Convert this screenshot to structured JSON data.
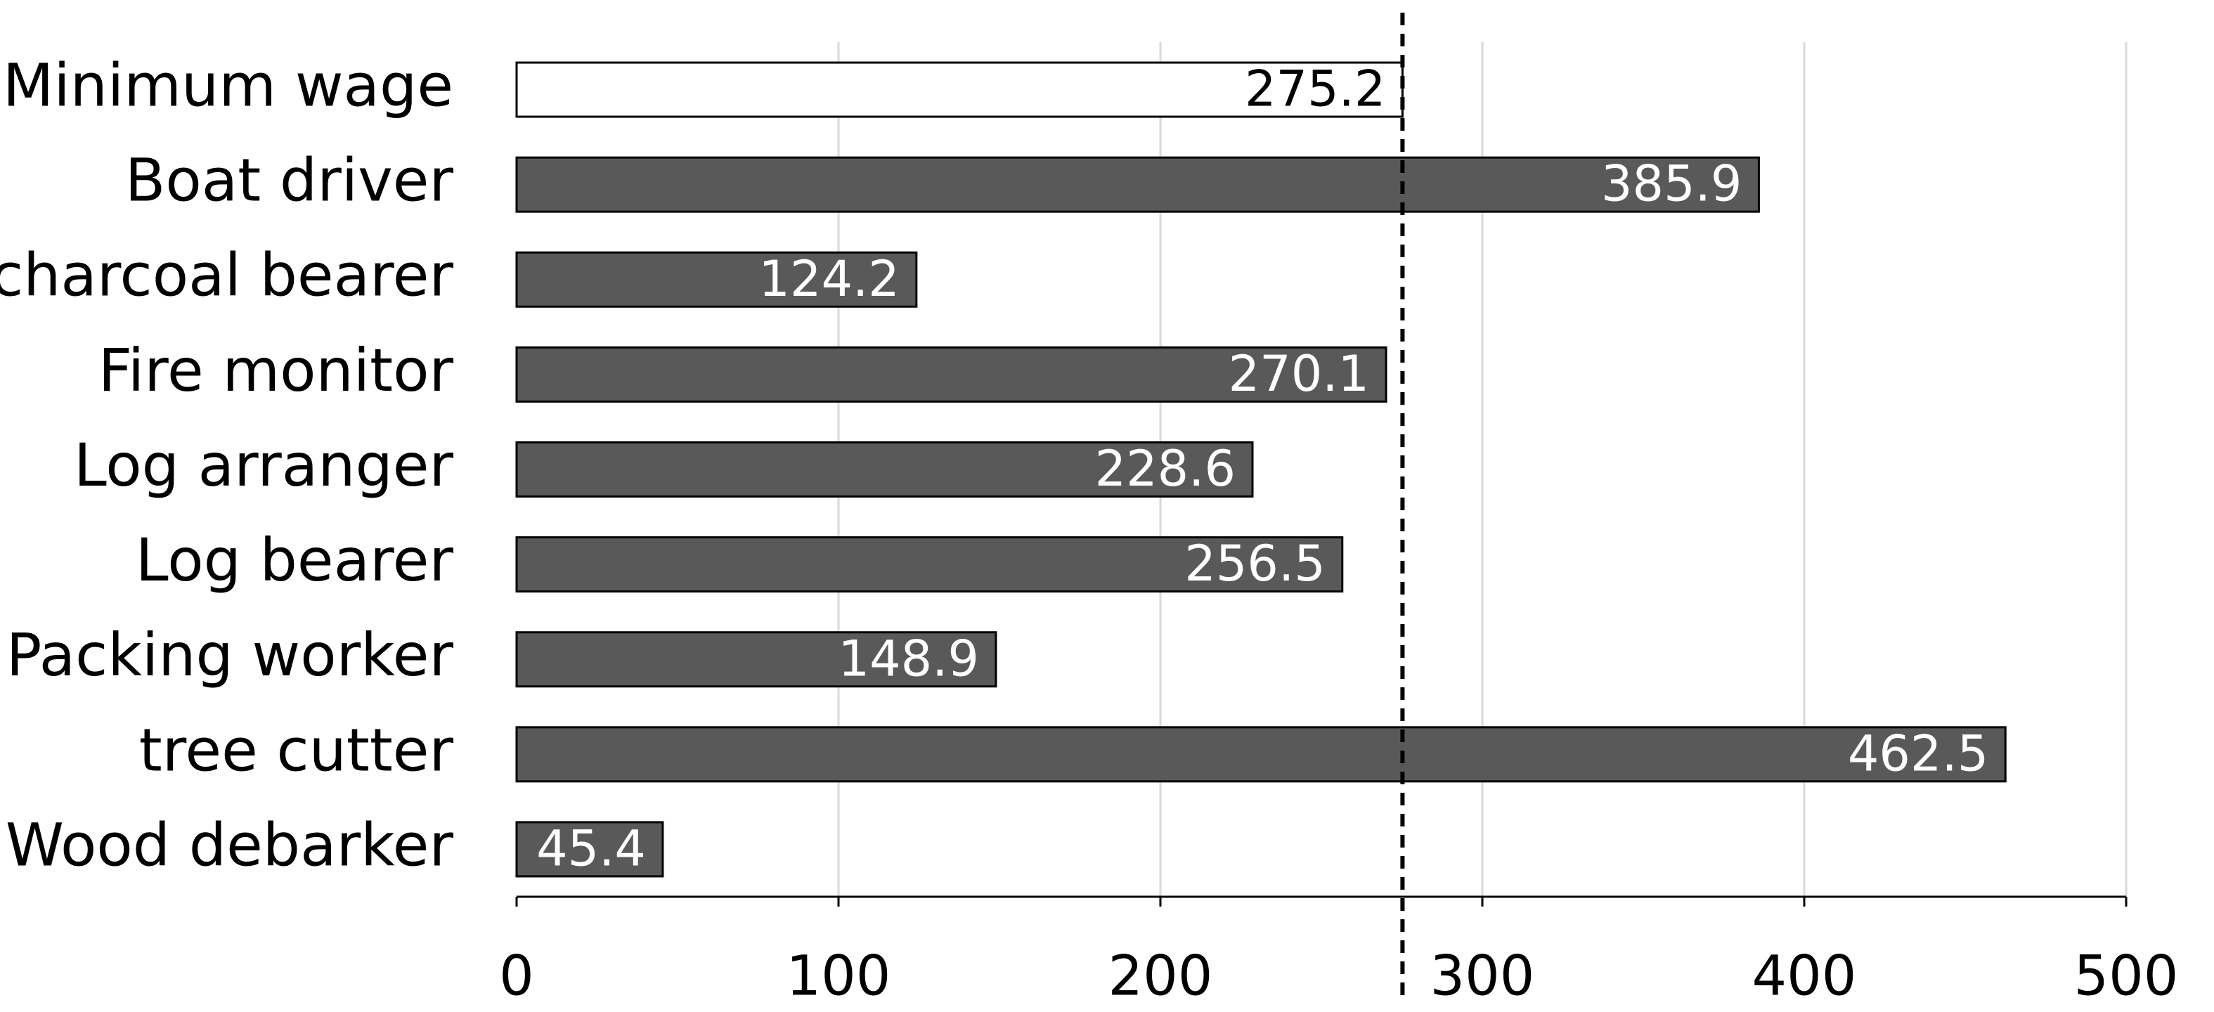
{
  "chart_data": {
    "type": "barh",
    "categories": [
      "Minimum wage",
      "Boat driver",
      "charcoal bearer",
      "Fire monitor",
      "Log arranger",
      "Log bearer",
      "Packing worker",
      "tree cutter",
      "Wood debarker"
    ],
    "values": [
      275.2,
      385.9,
      124.2,
      270.1,
      228.6,
      256.5,
      148.9,
      462.5,
      45.4
    ],
    "colors": [
      "#ffffff",
      "#595959",
      "#595959",
      "#595959",
      "#595959",
      "#595959",
      "#595959",
      "#595959",
      "#595959"
    ],
    "xlim": [
      0,
      500
    ],
    "xticks": [
      0,
      100,
      200,
      300,
      400,
      500
    ],
    "grid": true
  }
}
